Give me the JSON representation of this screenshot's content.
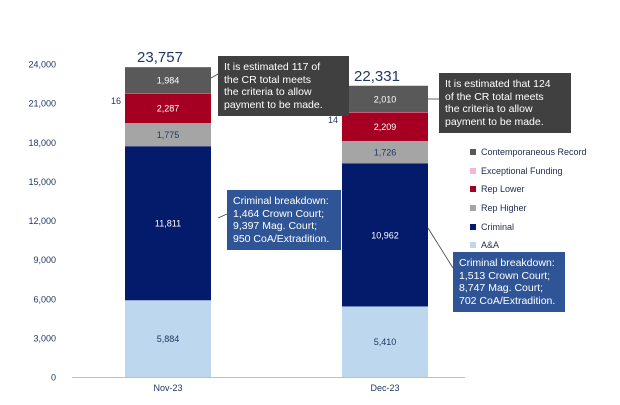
{
  "chart_data": {
    "type": "bar",
    "stacked": true,
    "categories": [
      "Nov-23",
      "Dec-23"
    ],
    "ylim": [
      0,
      24000
    ],
    "yticks": [
      "0",
      "3,000",
      "6,000",
      "9,000",
      "12,000",
      "15,000",
      "18,000",
      "21,000",
      "24,000"
    ],
    "grid": false,
    "legend_position": "right",
    "series": [
      {
        "name": "A&A",
        "values": [
          5884,
          5410
        ],
        "labels": [
          "5,884",
          "5,410"
        ],
        "color": "#bdd7ee",
        "text_color": "#1f3864"
      },
      {
        "name": "Criminal",
        "values": [
          11811,
          10962
        ],
        "labels": [
          "11,811",
          "10,962"
        ],
        "color": "#041a6b",
        "text_color": "#ffffff"
      },
      {
        "name": "Rep Higher",
        "values": [
          1775,
          1726
        ],
        "labels": [
          "1,775",
          "1,726"
        ],
        "color": "#a5a5a5",
        "text_color": "#1f3864"
      },
      {
        "name": "Rep Lower",
        "values": [
          2287,
          2209
        ],
        "labels": [
          "2,287",
          "2,209"
        ],
        "color": "#a50021",
        "text_color": "#ffffff"
      },
      {
        "name": "Exceptional Funding",
        "values": [
          16,
          14
        ],
        "labels": [
          "16",
          "14"
        ],
        "color": "#f4b6d2",
        "text_color": "#1f3864"
      },
      {
        "name": "Contemporaneous Record",
        "values": [
          1984,
          2010
        ],
        "labels": [
          "1,984",
          "2,010"
        ],
        "color": "#595959",
        "text_color": "#ffffff"
      }
    ],
    "totals": [
      "23,757",
      "22,331"
    ],
    "legend_order": [
      "Contemporaneous Record",
      "Exceptional Funding",
      "Rep Lower",
      "Rep Higher",
      "Criminal",
      "A&A"
    ],
    "annotations": [
      {
        "lines": [
          "It is estimated 117 of",
          "the CR total meets",
          "the criteria to allow",
          "payment to be made."
        ],
        "color": "#404040"
      },
      {
        "lines": [
          "It is estimated that 124",
          "of the CR total meets",
          "the criteria to allow",
          "payment to be made."
        ],
        "color": "#404040"
      },
      {
        "lines": [
          "Criminal breakdown:",
          "1,464 Crown Court;",
          "9,397 Mag. Court;",
          "950 CoA/Extradition."
        ],
        "color": "#2f5597"
      },
      {
        "lines": [
          "Criminal breakdown:",
          "1,513 Crown Court;",
          "8,747 Mag. Court;",
          "702 CoA/Extradition."
        ],
        "color": "#2f5597"
      }
    ],
    "colors": {
      "axis_text": "#1f3864",
      "total_text": "#1f3864"
    }
  }
}
